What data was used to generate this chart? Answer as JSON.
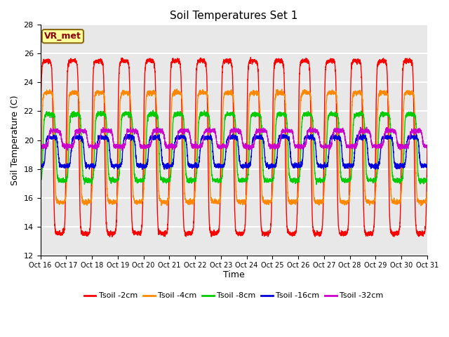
{
  "title": "Soil Temperatures Set 1",
  "xlabel": "Time",
  "ylabel": "Soil Temperature (C)",
  "ylim": [
    12,
    28
  ],
  "yticks": [
    12,
    14,
    16,
    18,
    20,
    22,
    24,
    26,
    28
  ],
  "x_labels": [
    "Oct 16",
    "Oct 17",
    "Oct 18",
    "Oct 19",
    "Oct 20",
    "Oct 21",
    "Oct 22",
    "Oct 23",
    "Oct 24",
    "Oct 25",
    "Oct 26",
    "Oct 27",
    "Oct 28",
    "Oct 29",
    "Oct 30",
    "Oct 31"
  ],
  "annotation_text": "VR_met",
  "bg_color": "#e8e8e8",
  "grid_color": "#ffffff",
  "colors": [
    "#ff0000",
    "#ff8800",
    "#00cc00",
    "#0000dd",
    "#cc00cc"
  ],
  "labels": [
    "Tsoil -2cm",
    "Tsoil -4cm",
    "Tsoil -8cm",
    "Tsoil -16cm",
    "Tsoil -32cm"
  ],
  "amplitudes": [
    6.0,
    3.8,
    2.3,
    1.0,
    0.55
  ],
  "means": [
    19.5,
    19.5,
    19.5,
    19.2,
    20.1
  ],
  "phases": [
    0.0,
    0.3,
    0.65,
    1.2,
    2.0
  ],
  "peak_sharpness": 4.0
}
